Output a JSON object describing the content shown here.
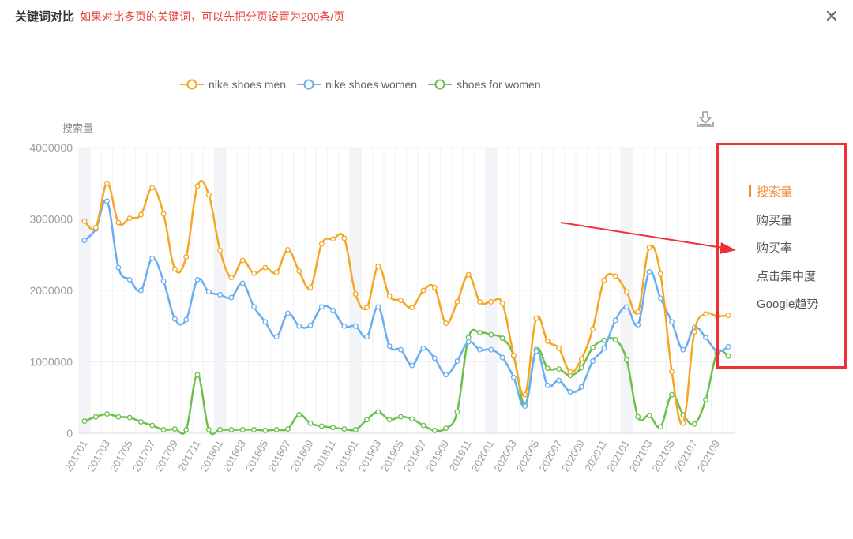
{
  "header": {
    "title": "关键词对比",
    "hint": "如果对比多页的关键词，可以先把分页设置为200条/页",
    "close_icon": "close-icon"
  },
  "toolbar": {
    "download_icon": "download-icon"
  },
  "metrics_panel": {
    "items": [
      {
        "label": "搜索量",
        "active": true
      },
      {
        "label": "购买量",
        "active": false
      },
      {
        "label": "购买率",
        "active": false
      },
      {
        "label": "点击集中度",
        "active": false
      },
      {
        "label": "Google趋势",
        "active": false
      }
    ],
    "highlight_color": "#ee3035",
    "active_color": "#f08a2a"
  },
  "chart_data": {
    "type": "line",
    "title": "",
    "xlabel": "",
    "ylabel": "搜索量",
    "ylim": [
      0,
      4000000
    ],
    "yticks": [
      "0",
      "1000000",
      "2000000",
      "3000000",
      "4000000"
    ],
    "grid": true,
    "legend_position": "top",
    "x_tick_labels": [
      "201701",
      "201703",
      "201705",
      "201707",
      "201709",
      "201711",
      "201801",
      "201803",
      "201805",
      "201807",
      "201809",
      "201811",
      "201901",
      "201903",
      "201905",
      "201907",
      "201909",
      "201911",
      "202001",
      "202003",
      "202005",
      "202007",
      "202009",
      "202011",
      "202101",
      "202103",
      "202105",
      "202107",
      "202109"
    ],
    "x": [
      "201701",
      "201702",
      "201703",
      "201704",
      "201705",
      "201706",
      "201707",
      "201708",
      "201709",
      "201710",
      "201711",
      "201712",
      "201801",
      "201802",
      "201803",
      "201804",
      "201805",
      "201806",
      "201807",
      "201808",
      "201809",
      "201810",
      "201811",
      "201812",
      "201901",
      "201902",
      "201903",
      "201904",
      "201905",
      "201906",
      "201907",
      "201908",
      "201909",
      "201910",
      "201911",
      "201912",
      "202001",
      "202002",
      "202003",
      "202004",
      "202005",
      "202006",
      "202007",
      "202008",
      "202009",
      "202010",
      "202011",
      "202012",
      "202101",
      "202102",
      "202103",
      "202104",
      "202105",
      "202106",
      "202107",
      "202108",
      "202109",
      "202110"
    ],
    "series": [
      {
        "name": "nike shoes men",
        "color": "#f5a623",
        "values": [
          2970000,
          2880000,
          3500000,
          2950000,
          3010000,
          3060000,
          3440000,
          3070000,
          2300000,
          2470000,
          3460000,
          3340000,
          2560000,
          2180000,
          2420000,
          2240000,
          2320000,
          2250000,
          2570000,
          2270000,
          2040000,
          2650000,
          2720000,
          2730000,
          1950000,
          1760000,
          2340000,
          1920000,
          1860000,
          1760000,
          2000000,
          2040000,
          1540000,
          1840000,
          2220000,
          1840000,
          1840000,
          1820000,
          1090000,
          540000,
          1610000,
          1290000,
          1190000,
          860000,
          1040000,
          1460000,
          2140000,
          2200000,
          1980000,
          1700000,
          2600000,
          2230000,
          860000,
          140000,
          1420000,
          1670000,
          1640000,
          1650000
        ]
      },
      {
        "name": "nike shoes women",
        "color": "#6aaef0",
        "values": [
          2700000,
          2860000,
          3250000,
          2320000,
          2150000,
          2000000,
          2450000,
          2130000,
          1600000,
          1590000,
          2150000,
          1980000,
          1940000,
          1900000,
          2100000,
          1770000,
          1560000,
          1350000,
          1680000,
          1500000,
          1510000,
          1770000,
          1720000,
          1500000,
          1500000,
          1350000,
          1770000,
          1220000,
          1170000,
          950000,
          1190000,
          1050000,
          820000,
          1010000,
          1280000,
          1170000,
          1170000,
          1060000,
          780000,
          380000,
          1150000,
          670000,
          740000,
          580000,
          650000,
          1010000,
          1190000,
          1580000,
          1770000,
          1520000,
          2260000,
          1890000,
          1560000,
          1170000,
          1480000,
          1340000,
          1150000,
          1210000
        ]
      },
      {
        "name": "shoes for women",
        "color": "#6cc04a",
        "values": [
          170000,
          230000,
          270000,
          230000,
          220000,
          160000,
          110000,
          50000,
          60000,
          50000,
          820000,
          50000,
          50000,
          50000,
          50000,
          50000,
          40000,
          50000,
          60000,
          260000,
          140000,
          100000,
          80000,
          60000,
          50000,
          190000,
          300000,
          190000,
          230000,
          200000,
          110000,
          40000,
          70000,
          300000,
          1340000,
          1410000,
          1380000,
          1330000,
          1080000,
          390000,
          1170000,
          910000,
          900000,
          810000,
          920000,
          1200000,
          1300000,
          1310000,
          1030000,
          230000,
          250000,
          90000,
          540000,
          260000,
          130000,
          470000,
          1120000,
          1080000
        ]
      }
    ]
  }
}
